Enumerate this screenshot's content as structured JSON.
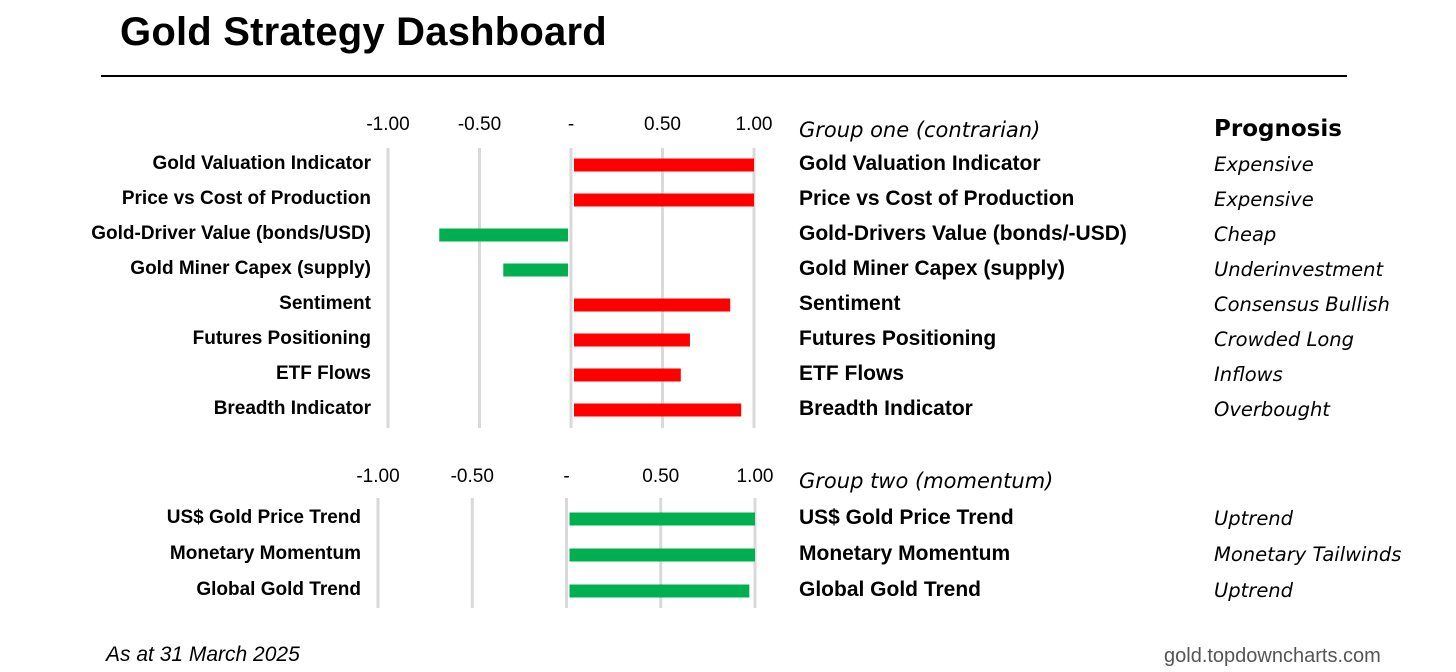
{
  "title": "Gold Strategy Dashboard",
  "prognosis_header": "Prognosis",
  "footer": {
    "date": "As at 31 March 2025",
    "source": "gold.topdowncharts.com"
  },
  "colors": {
    "positive_bar": "#ff0000",
    "negative_bar": "#00b050",
    "momentum_bar": "#00b050",
    "gridline": "#d9d9d9"
  },
  "chart_data": [
    {
      "type": "bar",
      "orientation": "horizontal",
      "group_title": "Group one (contrarian)",
      "xlim": [
        -1.0,
        1.0
      ],
      "tick_labels": [
        "-1.00",
        "-0.50",
        "-",
        "0.50",
        "1.00"
      ],
      "grid": true,
      "categories": [
        "Gold Valuation Indicator",
        "Price vs Cost of Production",
        "Gold-Driver Value (bonds/USD)",
        "Gold Miner Capex (supply)",
        "Sentiment",
        "Futures Positioning",
        "ETF Flows",
        "Breadth Indicator"
      ],
      "values": [
        1.0,
        1.0,
        -0.72,
        -0.37,
        0.87,
        0.65,
        0.6,
        0.93
      ],
      "table_names": [
        "Gold Valuation Indicator",
        "Price vs Cost of Production",
        "Gold-Drivers Value (bonds/-USD)",
        "Gold Miner Capex (supply)",
        "Sentiment",
        "Futures Positioning",
        "ETF Flows",
        "Breadth Indicator"
      ],
      "prognosis": [
        "Expensive",
        "Expensive",
        "Cheap",
        "Underinvestment",
        "Consensus Bullish",
        "Crowded Long",
        "Inflows",
        "Overbought"
      ]
    },
    {
      "type": "bar",
      "orientation": "horizontal",
      "group_title": "Group two (momentum)",
      "xlim": [
        -1.0,
        1.0
      ],
      "tick_labels": [
        "-1.00",
        "-0.50",
        "-",
        "0.50",
        "1.00"
      ],
      "grid": true,
      "categories": [
        "US$ Gold Price Trend",
        "Monetary Momentum",
        "Global Gold Trend"
      ],
      "values": [
        1.0,
        1.0,
        0.97
      ],
      "table_names": [
        "US$ Gold Price Trend",
        "Monetary Momentum",
        "Global Gold Trend"
      ],
      "prognosis": [
        "Uptrend",
        "Monetary Tailwinds",
        "Uptrend"
      ]
    }
  ]
}
